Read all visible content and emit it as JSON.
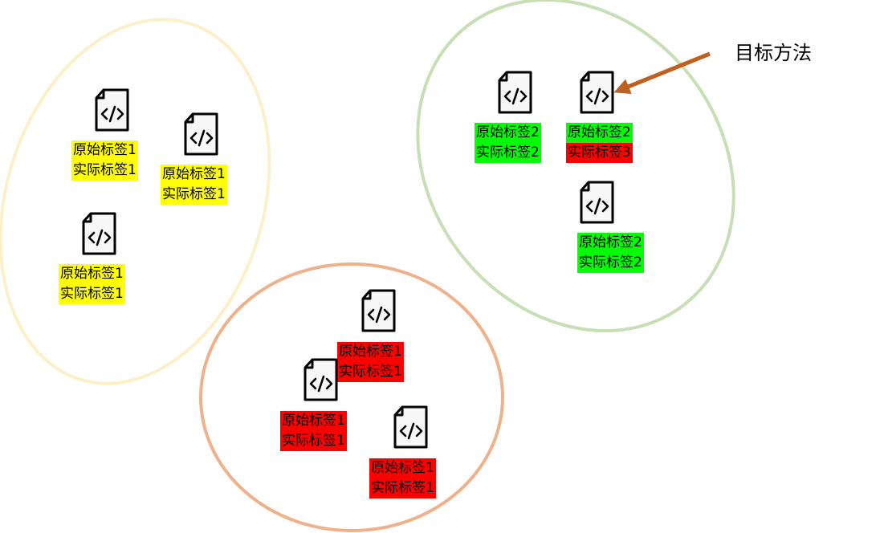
{
  "colors": {
    "yellow_cluster_outline": "#fdefc8",
    "green_cluster_outline": "#c7dfb4",
    "orange_cluster_outline": "#efb18a",
    "yellow_label": "#ffff00",
    "green_label": "#00ff00",
    "red_label": "#ff0000",
    "arrow": "#c0601f"
  },
  "annotation": {
    "text": "目标方法"
  },
  "clusters": [
    {
      "name": "yellow",
      "files": [
        {
          "original": "原始标签1",
          "actual": "实际标签1",
          "original_color": "#ffff00",
          "actual_color": "#ffff00"
        },
        {
          "original": "原始标签1",
          "actual": "实际标签1",
          "original_color": "#ffff00",
          "actual_color": "#ffff00"
        },
        {
          "original": "原始标签1",
          "actual": "实际标签1",
          "original_color": "#ffff00",
          "actual_color": "#ffff00"
        }
      ]
    },
    {
      "name": "green",
      "files": [
        {
          "original": "原始标签2",
          "actual": "实际标签2",
          "original_color": "#00ff00",
          "actual_color": "#00ff00"
        },
        {
          "original": "原始标签2",
          "actual": "实际标签3",
          "original_color": "#00ff00",
          "actual_color": "#ff0000"
        },
        {
          "original": "原始标签2",
          "actual": "实际标签2",
          "original_color": "#00ff00",
          "actual_color": "#00ff00"
        }
      ]
    },
    {
      "name": "orange",
      "files": [
        {
          "original": "原始标签1",
          "actual": "实际标签1",
          "original_color": "#ff0000",
          "actual_color": "#ff0000"
        },
        {
          "original": "原始标签1",
          "actual": "实际标签1",
          "original_color": "#ff0000",
          "actual_color": "#ff0000"
        },
        {
          "original": "原始标签1",
          "actual": "实际标签1",
          "original_color": "#ff0000",
          "actual_color": "#ff0000"
        }
      ]
    }
  ]
}
